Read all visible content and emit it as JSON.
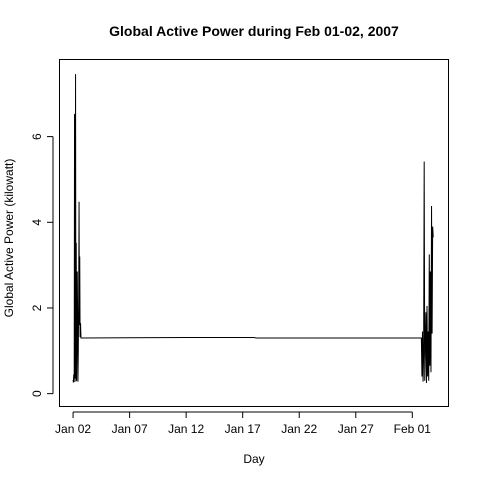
{
  "chart_data": {
    "type": "line",
    "title": "Global Active Power during Feb 01-02, 2007",
    "xlabel": "Day",
    "ylabel": "Global Active Power (kilowatt)",
    "x_ticks": [
      {
        "day": 0,
        "label": "Jan 02"
      },
      {
        "day": 5,
        "label": "Jan 07"
      },
      {
        "day": 10,
        "label": "Jan 12"
      },
      {
        "day": 15,
        "label": "Jan 17"
      },
      {
        "day": 20,
        "label": "Jan 22"
      },
      {
        "day": 25,
        "label": "Jan 27"
      },
      {
        "day": 30,
        "label": "Feb 01"
      }
    ],
    "y_ticks": [
      0,
      2,
      4,
      6
    ],
    "xlim": [
      -1.2,
      33.2
    ],
    "ylim": [
      -0.3,
      7.8
    ],
    "grid": false,
    "series": [
      {
        "color": "#000000",
        "points": [
          [
            0.0,
            0.32
          ],
          [
            0.03,
            0.26
          ],
          [
            0.06,
            0.45
          ],
          [
            0.1,
            0.27
          ],
          [
            0.13,
            6.53
          ],
          [
            0.16,
            0.35
          ],
          [
            0.19,
            1.4
          ],
          [
            0.22,
            7.46
          ],
          [
            0.25,
            0.28
          ],
          [
            0.28,
            3.52
          ],
          [
            0.31,
            0.3
          ],
          [
            0.34,
            1.38
          ],
          [
            0.37,
            2.85
          ],
          [
            0.4,
            1.82
          ],
          [
            0.43,
            0.28
          ],
          [
            0.46,
            0.95
          ],
          [
            0.5,
            2.3
          ],
          [
            0.53,
            4.48
          ],
          [
            0.56,
            1.6
          ],
          [
            0.59,
            3.2
          ],
          [
            0.62,
            1.32
          ],
          [
            0.66,
            1.65
          ],
          [
            0.7,
            1.3
          ],
          [
            10.0,
            1.31
          ],
          [
            16.0,
            1.31
          ],
          [
            16.2,
            1.3
          ],
          [
            24.0,
            1.3
          ],
          [
            30.8,
            1.3
          ],
          [
            30.85,
            0.4
          ],
          [
            30.9,
            1.45
          ],
          [
            30.95,
            0.28
          ],
          [
            31.0,
            0.9
          ],
          [
            31.05,
            5.42
          ],
          [
            31.1,
            0.3
          ],
          [
            31.15,
            1.1
          ],
          [
            31.2,
            1.9
          ],
          [
            31.25,
            0.25
          ],
          [
            31.3,
            2.05
          ],
          [
            31.35,
            0.4
          ],
          [
            31.4,
            1.45
          ],
          [
            31.45,
            0.3
          ],
          [
            31.5,
            3.25
          ],
          [
            31.55,
            0.65
          ],
          [
            31.6,
            2.85
          ],
          [
            31.65,
            0.5
          ],
          [
            31.7,
            4.38
          ],
          [
            31.75,
            1.4
          ],
          [
            31.8,
            3.9
          ],
          [
            31.85,
            3.65
          ]
        ]
      }
    ]
  }
}
